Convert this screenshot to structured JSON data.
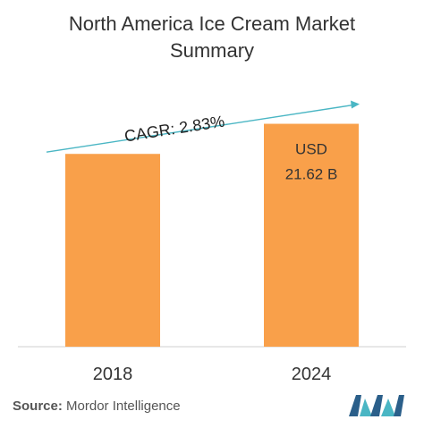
{
  "title_line1": "North America Ice Cream Market",
  "title_line2": "Summary",
  "chart_data": {
    "type": "bar",
    "categories": [
      "2018",
      "2024"
    ],
    "values": [
      18.7,
      21.62
    ],
    "value_labels": [
      "",
      "USD\n21.62 B"
    ],
    "annotation": "CAGR: 2.83%",
    "ylim": [
      0,
      26
    ],
    "grid": false,
    "bar_color": "#f9a04a",
    "arrow_color": "#4ab6c4"
  },
  "source": {
    "label": "Source:",
    "text": "Mordor Intelligence"
  },
  "logo": {
    "icon": "mordor-intelligence-logo",
    "colors": [
      "#2b5f8a",
      "#4ab6c4"
    ]
  }
}
